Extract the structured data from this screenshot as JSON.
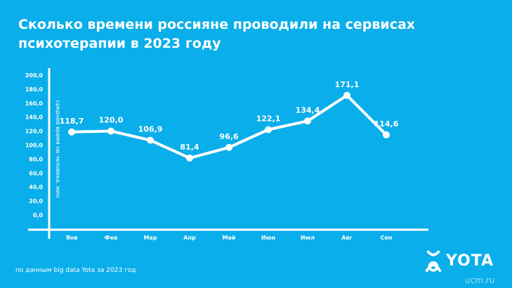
{
  "title": "Сколько времени россияне проводили на сервисах психотерапии в 2023 году",
  "source": "по данным big data Yota за 2023 год",
  "logo": "YOTA",
  "watermark": "ucm.ru",
  "colors": {
    "background": "#0aaeea",
    "line": "#ffffff"
  },
  "chart_data": {
    "type": "line",
    "title": "Сколько времени россияне проводили на сервисах психотерапии в 2023 году",
    "xlabel": "",
    "ylabel": "среднее время на человека, мин",
    "categories": [
      "Янв",
      "Фев",
      "Мар",
      "Апр",
      "Май",
      "Июн",
      "Июл",
      "Авг",
      "Сен"
    ],
    "values": [
      118.7,
      120.0,
      106.9,
      81.4,
      96.6,
      122.1,
      134.4,
      171.1,
      114.6
    ],
    "labels": [
      "118,7",
      "120,0",
      "106,9",
      "81,4",
      "96,6",
      "122,1",
      "134,4",
      "171,1",
      "114,6"
    ],
    "yticks": [
      "0,0",
      "20,0",
      "40,0",
      "60,0",
      "80,0",
      "100,0",
      "120,0",
      "140,0",
      "160,0",
      "180,0",
      "200,0"
    ],
    "ylim": [
      0,
      200
    ],
    "grid": false
  }
}
